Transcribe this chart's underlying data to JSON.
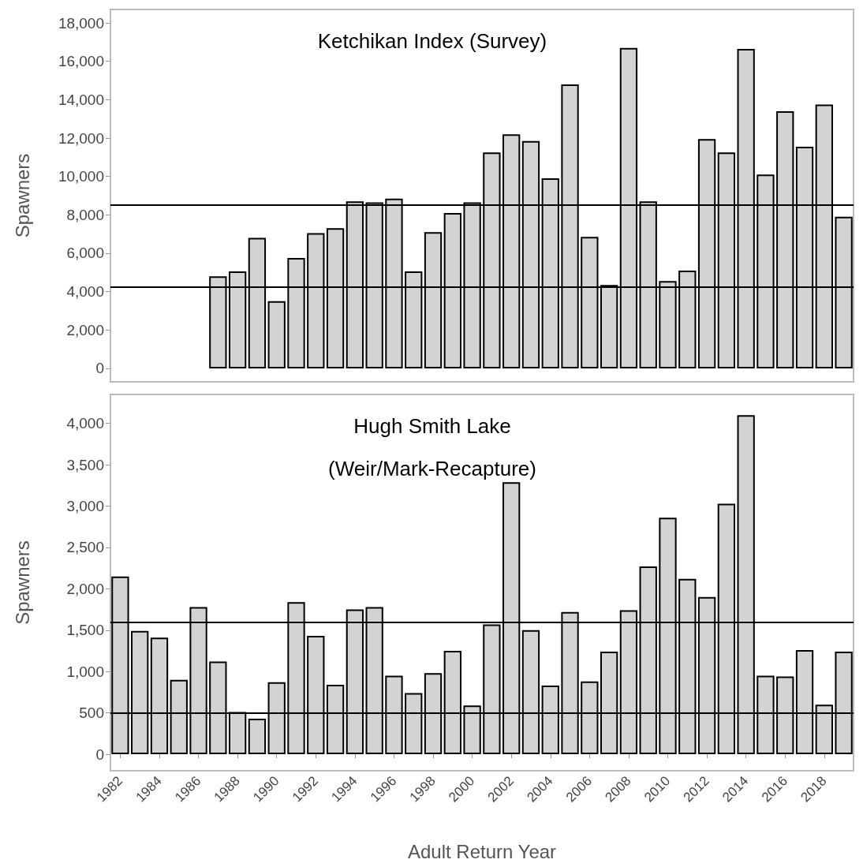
{
  "chart_data": [
    {
      "type": "bar",
      "title": "Ketchikan Index (Survey)",
      "ylabel": "Spawners",
      "tick_labels": "y",
      "categories": [
        "1982",
        null,
        "1984",
        null,
        "1986",
        null,
        "1988",
        null,
        "1990",
        null,
        "1992",
        null,
        "1994",
        null,
        "1996",
        null,
        "1998",
        null,
        "2000",
        null,
        "2002",
        null,
        "2004",
        null,
        "2006",
        null,
        "2008",
        null,
        "2010",
        null,
        "2012",
        null,
        "2014",
        null,
        "2016",
        null,
        "2018",
        null
      ],
      "values": [
        null,
        null,
        null,
        null,
        null,
        4800,
        5050,
        6800,
        3500,
        5750,
        7050,
        7300,
        8700,
        8650,
        8850,
        5050,
        7100,
        8100,
        8650,
        11250,
        12200,
        11850,
        9900,
        14800,
        6850,
        4350,
        16700,
        8700,
        4550,
        5100,
        11950,
        11250,
        16650,
        10100,
        13400,
        11550,
        13750,
        7900
      ],
      "color": "#d3d3d3",
      "ylim": [
        -700,
        18700
      ],
      "yticks": [
        {
          "value": 0,
          "label": "0"
        },
        {
          "value": 2000,
          "label": "2,000"
        },
        {
          "value": 4000,
          "label": "4,000"
        },
        {
          "value": 6000,
          "label": "6,000"
        },
        {
          "value": 8000,
          "label": "8,000"
        },
        {
          "value": 10000,
          "label": "10,000"
        },
        {
          "value": 12000,
          "label": "12,000"
        },
        {
          "value": 14000,
          "label": "14,000"
        },
        {
          "value": 16000,
          "label": "16,000"
        },
        {
          "value": 18000,
          "label": "18,000"
        }
      ],
      "ref_lines": [
        {
          "axis": "y",
          "value": 8500,
          "color": "#000000"
        },
        {
          "axis": "y",
          "value": 4250,
          "color": "#000000"
        }
      ]
    },
    {
      "type": "bar",
      "title": "Hugh Smith Lake\n(Weir/Mark-Recapture)",
      "ylabel": "Spawners",
      "xlabel": "Adult Return Year",
      "categories": [
        "1982",
        null,
        "1984",
        null,
        "1986",
        null,
        "1988",
        null,
        "1990",
        null,
        "1992",
        null,
        "1994",
        null,
        "1996",
        null,
        "1998",
        null,
        "2000",
        null,
        "2002",
        null,
        "2004",
        null,
        "2006",
        null,
        "2008",
        null,
        "2010",
        null,
        "2012",
        null,
        "2014",
        null,
        "2016",
        null,
        "2018",
        null
      ],
      "values": [
        2150,
        1490,
        1410,
        900,
        1780,
        1120,
        510,
        430,
        870,
        1840,
        1430,
        840,
        1750,
        1780,
        950,
        740,
        980,
        1250,
        590,
        1570,
        3290,
        1500,
        830,
        1720,
        880,
        1240,
        1740,
        2270,
        2860,
        2120,
        1900,
        3030,
        4100,
        950,
        940,
        1260,
        600,
        1240
      ],
      "color": "#d3d3d3",
      "ylim": [
        -200,
        4350
      ],
      "yticks": [
        {
          "value": 0,
          "label": "0"
        },
        {
          "value": 500,
          "label": "500"
        },
        {
          "value": 1000,
          "label": "1,000"
        },
        {
          "value": 1500,
          "label": "1,500"
        },
        {
          "value": 2000,
          "label": "2,000"
        },
        {
          "value": 2500,
          "label": "2,500"
        },
        {
          "value": 3000,
          "label": "3,000"
        },
        {
          "value": 3500,
          "label": "3,500"
        },
        {
          "value": 4000,
          "label": "4,000"
        }
      ],
      "ref_lines": [
        {
          "axis": "y",
          "value": 1600,
          "color": "#000000"
        },
        {
          "axis": "y",
          "value": 500,
          "color": "#000000"
        }
      ]
    }
  ]
}
